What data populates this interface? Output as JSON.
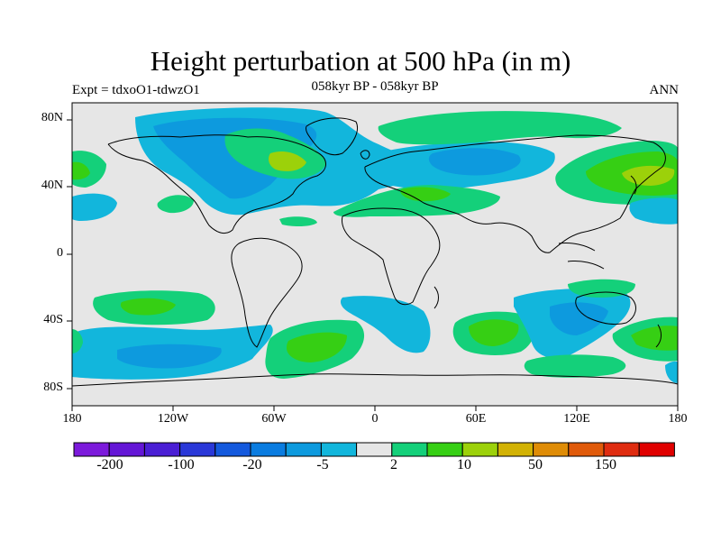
{
  "header": {
    "title": "Height perturbation at 500 hPa (in m)",
    "experiment": "Expt = tdxoO1-tdwzO1",
    "period": "058kyr BP - 058kyr BP",
    "season": "ANN"
  },
  "axes": {
    "lat_labels": [
      "80N",
      "40N",
      "0",
      "40S",
      "80S"
    ],
    "lon_labels": [
      "180",
      "120W",
      "60W",
      "0",
      "60E",
      "120E",
      "180"
    ]
  },
  "colorbar": {
    "labels": [
      "-200",
      "-100",
      "-20",
      "-5",
      "2",
      "10",
      "50",
      "150"
    ],
    "colors": [
      "#7c1adb",
      "#6416d6",
      "#4a1ed4",
      "#2a38d8",
      "#1459dd",
      "#0a7ce0",
      "#0d9ade",
      "#12b6dc",
      "#e6e6e6",
      "#14d07a",
      "#36cf14",
      "#9cd10a",
      "#d2b204",
      "#df8c06",
      "#e05a0a",
      "#df2c10",
      "#e00000"
    ]
  },
  "map_data": {
    "type": "filled-contour",
    "projection": "cylindrical-equidistant",
    "lon_range": [
      -180,
      180
    ],
    "lat_range": [
      -90,
      90
    ]
  }
}
